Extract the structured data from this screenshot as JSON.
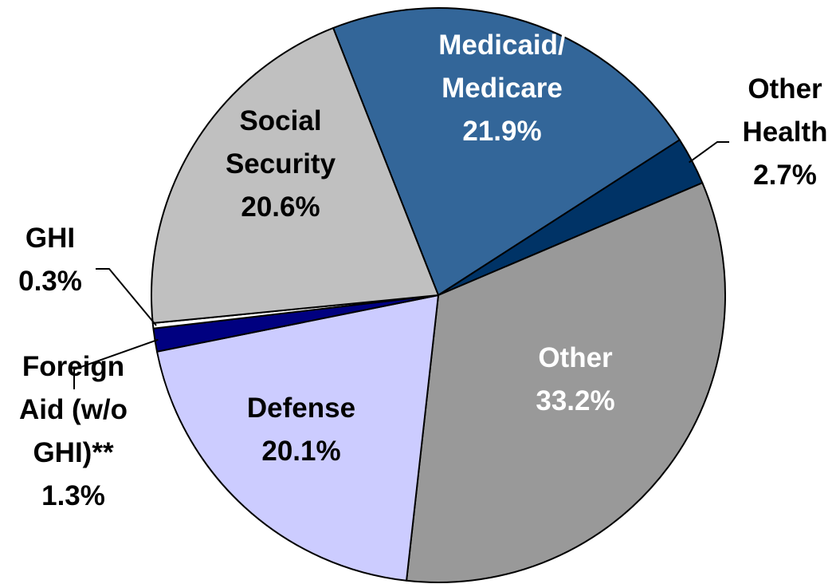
{
  "chart_data": {
    "type": "pie",
    "title": "",
    "unit": "%",
    "slices": [
      {
        "label_lines": [
          "Medicaid/",
          "Medicare",
          "21.9%"
        ],
        "value": 21.9,
        "color": "#336699",
        "label_color": "#ffffff"
      },
      {
        "label_lines": [
          "Other",
          "Health",
          "2.7%"
        ],
        "value": 2.7,
        "color": "#003366",
        "label_color": "#000000"
      },
      {
        "label_lines": [
          "Other",
          "33.2%"
        ],
        "value": 33.2,
        "color": "#999999",
        "label_color": "#ffffff"
      },
      {
        "label_lines": [
          "Defense",
          "20.1%"
        ],
        "value": 20.1,
        "color": "#ccccff",
        "label_color": "#000000"
      },
      {
        "label_lines": [
          "Foreign",
          "Aid (w/o",
          "GHI)**",
          "1.3%"
        ],
        "value": 1.3,
        "color": "#000080",
        "label_color": "#000000"
      },
      {
        "label_lines": [
          "GHI",
          "0.3%"
        ],
        "value": 0.3,
        "color": "#ffffff",
        "label_color": "#000000"
      },
      {
        "label_lines": [
          "Social",
          "Security",
          "20.6%"
        ],
        "value": 20.6,
        "color": "#c0c0c0",
        "label_color": "#000000"
      }
    ]
  }
}
